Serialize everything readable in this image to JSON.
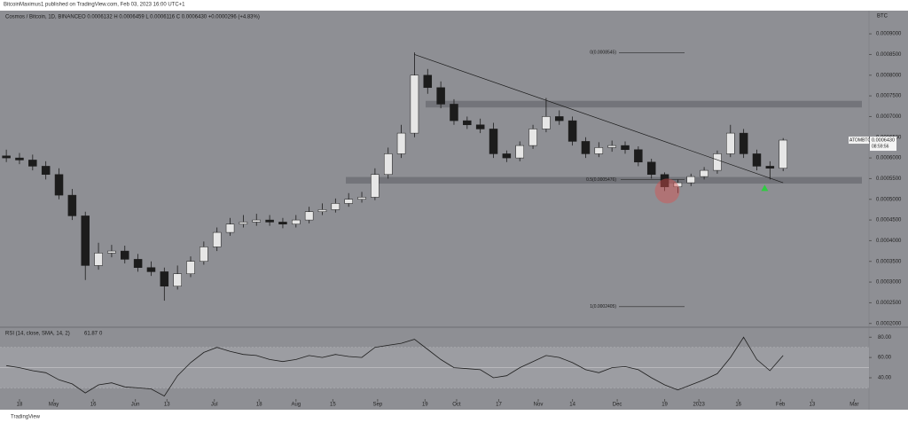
{
  "chart_data": {
    "type": "candlestick",
    "header": "BitcoinMaximus1 published on TradingView.com, Feb 03, 2023 16:00 UTC+1",
    "title": "Cosmos / Bitcoin, 1D, BINANCE",
    "ohlc_legend": "O 0.0006132 H 0.0006459 L 0.0006116 C 0.0006430 +0.0000296 (+4.83%)",
    "axis_unit": "BTC",
    "footer": "TradingView",
    "x": [
      -5,
      0,
      5,
      10,
      15,
      20,
      25,
      30,
      35,
      40,
      45,
      50,
      55,
      60,
      65,
      70,
      75,
      80,
      85,
      90,
      95,
      100,
      105,
      110,
      115,
      120,
      125,
      130,
      135,
      140,
      145,
      150,
      155,
      160,
      165,
      170,
      175,
      180,
      185,
      190,
      195,
      200,
      205,
      210,
      215,
      220,
      225,
      230,
      235,
      240,
      245,
      250,
      255,
      260,
      265,
      270,
      275,
      280,
      285,
      290
    ],
    "open": [
      0.000605,
      0.0006,
      0.000595,
      0.00058,
      0.00056,
      0.00051,
      0.00046,
      0.00034,
      0.00037,
      0.000375,
      0.000355,
      0.000335,
      0.000325,
      0.00029,
      0.00032,
      0.00035,
      0.000385,
      0.00042,
      0.00044,
      0.000445,
      0.00045,
      0.000445,
      0.00044,
      0.00045,
      0.00047,
      0.000475,
      0.00049,
      0.0005,
      0.000505,
      0.00056,
      0.00061,
      0.00066,
      0.0008,
      0.00077,
      0.00073,
      0.00069,
      0.00068,
      0.00067,
      0.00061,
      0.0006,
      0.00063,
      0.00067,
      0.0007,
      0.00069,
      0.00064,
      0.00061,
      0.000625,
      0.00063,
      0.00062,
      0.00059,
      0.00056,
      0.00053,
      0.00054,
      0.000555,
      0.00057,
      0.00061,
      0.00066,
      0.00061,
      0.00058,
      0.000575
    ],
    "high": [
      0.00062,
      0.000612,
      0.000608,
      0.000592,
      0.000575,
      0.000525,
      0.00047,
      0.000395,
      0.00039,
      0.000388,
      0.000368,
      0.00035,
      0.000335,
      0.00034,
      0.000362,
      0.000398,
      0.000432,
      0.000455,
      0.000462,
      0.000465,
      0.000462,
      0.000455,
      0.000462,
      0.000482,
      0.00049,
      0.000502,
      0.000515,
      0.000518,
      0.000575,
      0.000625,
      0.00068,
      0.000855,
      0.000815,
      0.000785,
      0.000742,
      0.0007,
      0.000695,
      0.000685,
      0.000618,
      0.00064,
      0.00068,
      0.000745,
      0.000715,
      0.0007,
      0.00065,
      0.000638,
      0.000642,
      0.00064,
      0.000628,
      0.000598,
      0.000565,
      0.000548,
      0.000562,
      0.000578,
      0.000618,
      0.00068,
      0.00067,
      0.00062,
      0.000592,
      0.000648
    ],
    "low": [
      0.00059,
      0.000585,
      0.00057,
      0.000548,
      0.0005,
      0.00045,
      0.000305,
      0.00033,
      0.00036,
      0.000345,
      0.000325,
      0.000315,
      0.000255,
      0.000282,
      0.000312,
      0.000342,
      0.000375,
      0.000412,
      0.000432,
      0.000436,
      0.000436,
      0.00043,
      0.000432,
      0.000442,
      0.000462,
      0.000468,
      0.000482,
      0.000492,
      0.000498,
      0.00055,
      0.0006,
      0.00065,
      0.000755,
      0.00072,
      0.00068,
      0.00067,
      0.00066,
      0.0006,
      0.00059,
      0.000592,
      0.000622,
      0.000662,
      0.00068,
      0.00063,
      0.0006,
      0.000602,
      0.000615,
      0.00061,
      0.00058,
      0.00055,
      0.00052,
      0.000515,
      0.000532,
      0.000548,
      0.000562,
      0.000602,
      0.0006,
      0.00057,
      0.000548,
      0.000568
    ],
    "close": [
      0.0006,
      0.000595,
      0.00058,
      0.00056,
      0.00051,
      0.00046,
      0.00034,
      0.00037,
      0.000375,
      0.000355,
      0.000335,
      0.000325,
      0.00029,
      0.00032,
      0.00035,
      0.000385,
      0.00042,
      0.00044,
      0.000445,
      0.00045,
      0.000445,
      0.00044,
      0.00045,
      0.00047,
      0.000475,
      0.00049,
      0.0005,
      0.000505,
      0.00056,
      0.00061,
      0.00066,
      0.0008,
      0.00077,
      0.00073,
      0.00069,
      0.00068,
      0.00067,
      0.00061,
      0.0006,
      0.00063,
      0.00067,
      0.0007,
      0.00069,
      0.00064,
      0.00061,
      0.000625,
      0.00063,
      0.00062,
      0.00059,
      0.00056,
      0.00053,
      0.00054,
      0.000555,
      0.00057,
      0.00061,
      0.00066,
      0.00061,
      0.00058,
      0.000575,
      0.000643
    ],
    "up_color": "#e6e6e6",
    "down_color": "#1c1c1c",
    "xlim": [
      -7.4,
      322.6
    ],
    "xticks": [
      {
        "value": 0,
        "label": "18"
      },
      {
        "value": 13,
        "label": "May"
      },
      {
        "value": 28,
        "label": "16"
      },
      {
        "value": 44,
        "label": "Jun"
      },
      {
        "value": 56,
        "label": "13"
      },
      {
        "value": 74,
        "label": "Jul"
      },
      {
        "value": 91,
        "label": "18"
      },
      {
        "value": 105,
        "label": "Aug"
      },
      {
        "value": 119,
        "label": "15"
      },
      {
        "value": 136,
        "label": "Sep"
      },
      {
        "value": 154,
        "label": "19"
      },
      {
        "value": 166,
        "label": "Oct"
      },
      {
        "value": 182,
        "label": "17"
      },
      {
        "value": 197,
        "label": "Nov"
      },
      {
        "value": 210,
        "label": "14"
      },
      {
        "value": 227,
        "label": "Dec"
      },
      {
        "value": 245,
        "label": "19"
      },
      {
        "value": 258,
        "label": "2023"
      },
      {
        "value": 273,
        "label": "16"
      },
      {
        "value": 289,
        "label": "Feb"
      },
      {
        "value": 301,
        "label": "13"
      },
      {
        "value": 317,
        "label": "Mar"
      }
    ],
    "ylim": [
      0.000193,
      0.000956
    ],
    "yticks": [
      {
        "value": 0.0009,
        "label": "0.0009000"
      },
      {
        "value": 0.00085,
        "label": "0.0008500"
      },
      {
        "value": 0.0008,
        "label": "0.0008000"
      },
      {
        "value": 0.00075,
        "label": "0.0007500"
      },
      {
        "value": 0.0007,
        "label": "0.0007000"
      },
      {
        "value": 0.00065,
        "label": "0.0006500"
      },
      {
        "value": 0.0006,
        "label": "0.0006000"
      },
      {
        "value": 0.00055,
        "label": "0.0005500"
      },
      {
        "value": 0.0005,
        "label": "0.0005000"
      },
      {
        "value": 0.00045,
        "label": "0.0004500"
      },
      {
        "value": 0.0004,
        "label": "0.0004000"
      },
      {
        "value": 0.00035,
        "label": "0.0003500"
      },
      {
        "value": 0.0003,
        "label": "0.0003000"
      },
      {
        "value": 0.00025,
        "label": "0.0002500"
      },
      {
        "value": 0.0002,
        "label": "0.0002000"
      }
    ],
    "fib": [
      {
        "value": 0.0008545,
        "label": "0(0.0008545)"
      },
      {
        "value": 0.0005476,
        "label": "0.5(0.0005476)"
      },
      {
        "value": 0.0002405,
        "label": "1(0.0002405)"
      }
    ],
    "zones": [
      {
        "low": 0.000722,
        "high": 0.000738
      },
      {
        "low": 0.000538,
        "high": 0.000554
      }
    ],
    "trendline": {
      "x": [
        150,
        290
      ],
      "y": [
        0.00085,
        0.00054
      ]
    },
    "highlight": {
      "x": 246,
      "y": 0.00052
    },
    "signal": {
      "x": 283,
      "y": 0.000535
    },
    "last_price": {
      "symbol": "ATOMBTC",
      "value": 0.000643,
      "label": "0.0006430",
      "countdown": "08:59:56"
    },
    "rsi": {
      "title": "RSI (14, close, SMA, 14, 2)",
      "last": "61.87",
      "sma": "0",
      "color": "#1e1e1e",
      "values": [
        52,
        50,
        47,
        45,
        38,
        34,
        25,
        33,
        35,
        31,
        30,
        29,
        22,
        42,
        55,
        65,
        70,
        66,
        63,
        62,
        58,
        56,
        58,
        62,
        60,
        63,
        61,
        60,
        70,
        72,
        74,
        78,
        68,
        58,
        50,
        49,
        48,
        40,
        42,
        50,
        56,
        62,
        60,
        55,
        48,
        45,
        50,
        51,
        48,
        40,
        33,
        28,
        33,
        38,
        44,
        60,
        80,
        58,
        47,
        62
      ],
      "ylim": [
        19,
        89
      ],
      "yticks": [
        {
          "value": 80,
          "label": "80.00"
        },
        {
          "value": 60,
          "label": "60.00"
        },
        {
          "value": 40,
          "label": "40.00"
        }
      ],
      "band": [
        30,
        70
      ],
      "mid": 50
    }
  }
}
